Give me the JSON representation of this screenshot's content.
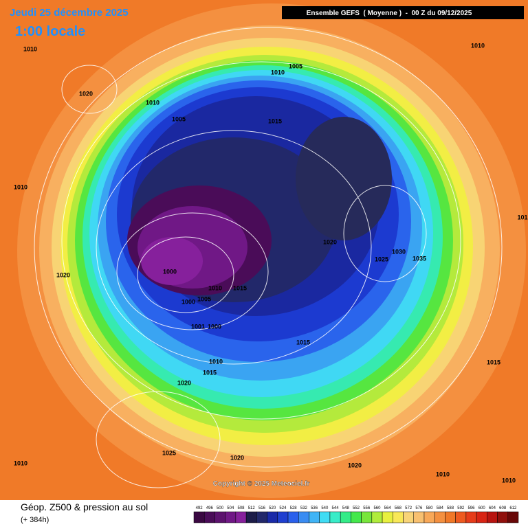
{
  "header": {
    "date": "Jeudi 25 décembre 2025",
    "time": "1:00 locale",
    "run": "Ensemble GEFS  ( Moyenne )  -  00 Z du 09/12/2025"
  },
  "map": {
    "isobar_labels": [
      "1010",
      "1020",
      "1010",
      "1020",
      "1010",
      "1005",
      "1010",
      "1005",
      "1015",
      "1010",
      "1020",
      "1025",
      "1030",
      "1035",
      "1000",
      "1000",
      "1005",
      "1010",
      "1015",
      "1001",
      "1000",
      "1015",
      "1010",
      "1015",
      "1020",
      "1025",
      "1020",
      "1020",
      "1010",
      "1010",
      "1010",
      "1015",
      "101"
    ],
    "copyright": "Copyright © 2025 Meteociel.fr"
  },
  "footer": {
    "title": "Géop. Z500 & pression au sol",
    "lead": "(+ 384h)"
  },
  "colorbar": {
    "ticks": [
      492,
      496,
      500,
      504,
      508,
      512,
      516,
      520,
      524,
      528,
      532,
      536,
      540,
      544,
      548,
      552,
      556,
      560,
      564,
      568,
      572,
      576,
      580,
      584,
      588,
      592,
      596,
      600,
      604,
      608,
      612
    ],
    "colors": [
      "#3a0842",
      "#4a0c58",
      "#5c126e",
      "#701886",
      "#86209c",
      "#1c1c48",
      "#22286a",
      "#1a2aa8",
      "#1f3fd0",
      "#2a60ec",
      "#3a8cf2",
      "#40b4f6",
      "#40dcf4",
      "#38ecc8",
      "#34ec88",
      "#44e84c",
      "#78e63c",
      "#b0ec3c",
      "#e8f040",
      "#f8e858",
      "#f8d478",
      "#f8c070",
      "#f8a858",
      "#f49040",
      "#f07828",
      "#ee5a20",
      "#e63c1a",
      "#d82414",
      "#b81410",
      "#90100c",
      "#680808"
    ]
  }
}
